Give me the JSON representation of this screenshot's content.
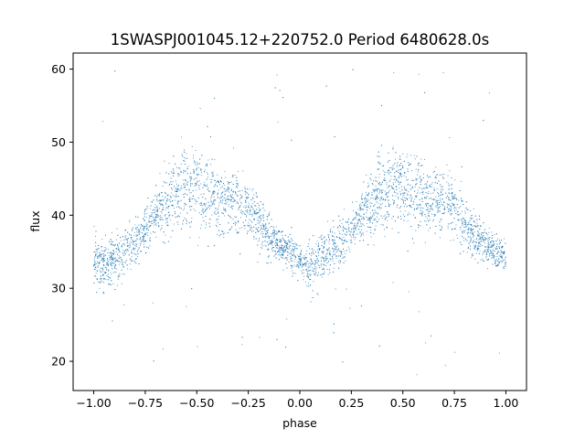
{
  "chart_data": {
    "type": "scatter",
    "title": "1SWASPJ001045.12+220752.0 Period 6480628.0s",
    "xlabel": "phase",
    "ylabel": "flux",
    "xlim": [
      -1.1,
      1.1
    ],
    "ylim": [
      16,
      62.2
    ],
    "xticks": [
      -1.0,
      -0.75,
      -0.5,
      -0.25,
      0.0,
      0.25,
      0.5,
      0.75,
      1.0
    ],
    "xtick_labels": [
      "−1.00",
      "−0.75",
      "−0.50",
      "−0.25",
      "0.00",
      "0.25",
      "0.50",
      "0.75",
      "1.00"
    ],
    "yticks": [
      20,
      30,
      40,
      50,
      60
    ],
    "ytick_labels": [
      "20",
      "30",
      "40",
      "50",
      "60"
    ],
    "grid": false,
    "legend": "none",
    "marker_color": "#1f77b4",
    "series": [
      {
        "x": [
          -1.0,
          -0.95,
          -0.9,
          -0.85,
          -0.8,
          -0.75,
          -0.7,
          -0.65,
          -0.6,
          -0.55,
          -0.5,
          -0.45,
          -0.4,
          -0.35,
          -0.3,
          -0.25,
          -0.2,
          -0.15,
          -0.1,
          -0.05,
          0.0,
          0.05,
          0.1,
          0.15,
          0.2,
          0.25,
          0.3,
          0.35,
          0.4,
          0.45,
          0.5,
          0.55,
          0.6,
          0.65,
          0.7,
          0.75,
          0.8,
          0.85,
          0.9,
          0.95,
          1.0
        ],
        "y": [
          34,
          33,
          34,
          35,
          36,
          38,
          40,
          42,
          43,
          44,
          44,
          43,
          42,
          42,
          42,
          41,
          39,
          37,
          36,
          35,
          34,
          33,
          34,
          35,
          36,
          38,
          40,
          42,
          43,
          44,
          44,
          43,
          42,
          42,
          42,
          41,
          39,
          37,
          36,
          35,
          34
        ],
        "spread": [
          3,
          3,
          3,
          3,
          3,
          3,
          3,
          4,
          5,
          5,
          5,
          5,
          4,
          4,
          4,
          3,
          3,
          3,
          2,
          2,
          2,
          3,
          3,
          3,
          3,
          3,
          3,
          4,
          5,
          5,
          5,
          5,
          4,
          4,
          4,
          3,
          3,
          3,
          2,
          2,
          2
        ]
      }
    ]
  }
}
